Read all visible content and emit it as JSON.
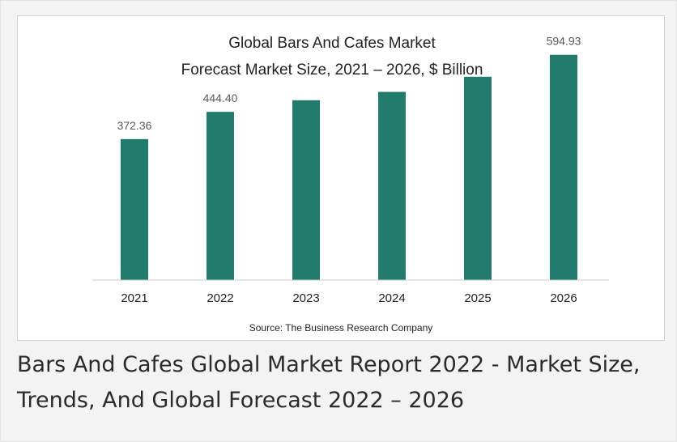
{
  "chart_data": {
    "type": "bar",
    "title": "Global Bars And Cafes Market",
    "subtitle": "Forecast Market Size, 2021 – 2026, $ Billion",
    "categories": [
      "2021",
      "2022",
      "2023",
      "2024",
      "2025",
      "2026"
    ],
    "values": [
      372.36,
      444.4,
      475,
      497,
      537,
      594.93
    ],
    "data_labels": [
      "372.36",
      "444.40",
      "",
      "",
      "",
      "594.93"
    ],
    "ylabel": "",
    "xlabel": "",
    "ylim": [
      0,
      620
    ],
    "grid": false,
    "legend": "none",
    "bar_color": "#217a6b",
    "source": "Source: The Business Research Company"
  },
  "caption": "Bars And Cafes Global Market Report 2022 - Market Size, Trends, And Global Forecast 2022 – 2026"
}
